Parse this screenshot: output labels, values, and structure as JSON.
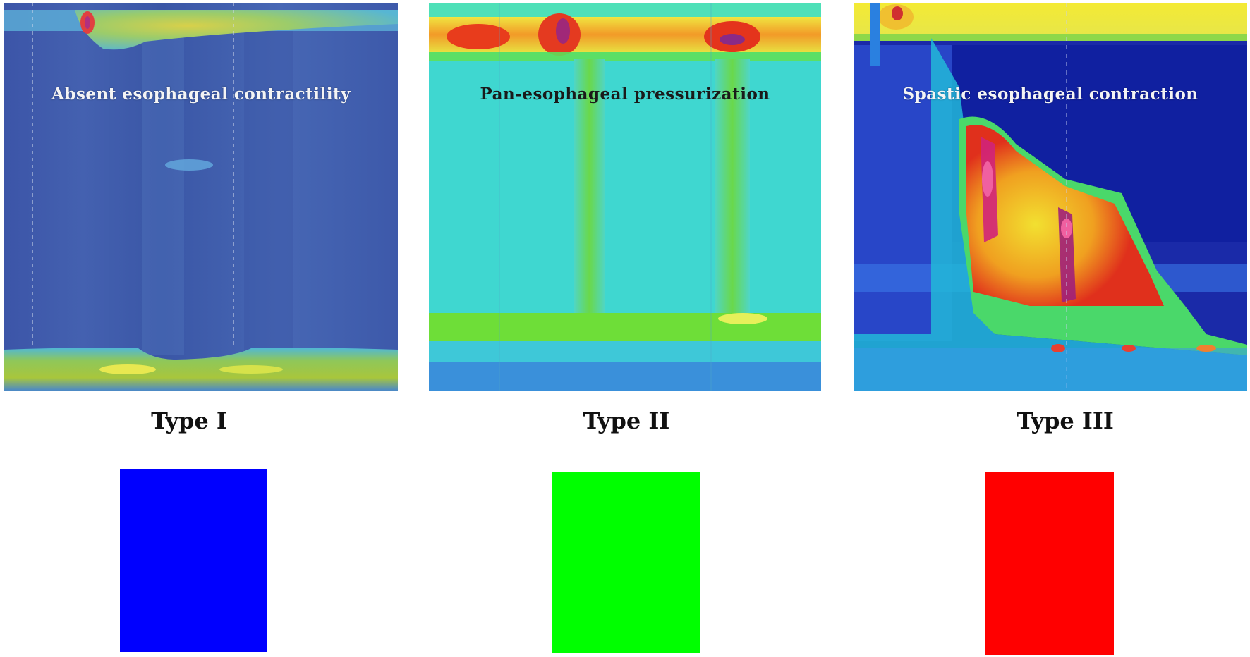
{
  "panels": [
    {
      "overlay": "Absent esophageal contractility",
      "type_label": "Type I",
      "swatch_color": "#0000ff"
    },
    {
      "overlay": "Pan-esophageal pressurization",
      "type_label": "Type II",
      "swatch_color": "#00ff00"
    },
    {
      "overlay": "Spastic esophageal contraction",
      "type_label": "Type III",
      "swatch_color": "#ff0000"
    }
  ]
}
